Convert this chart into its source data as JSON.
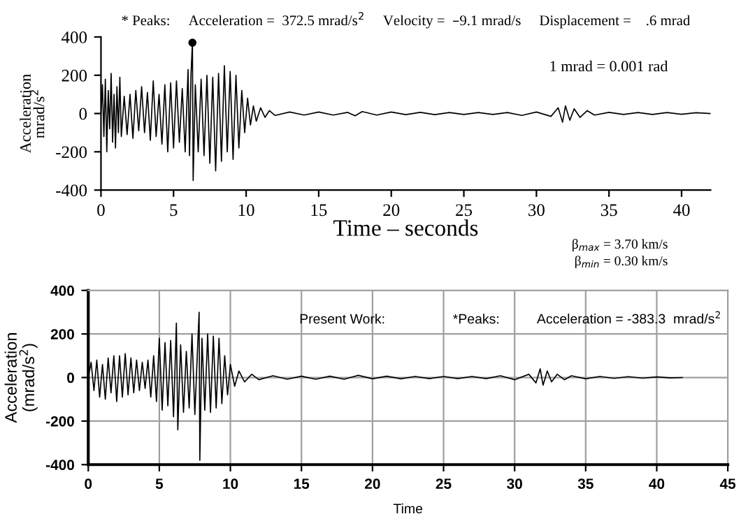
{
  "chart_data": [
    {
      "type": "line",
      "title": "* Peaks:     Acceleration =  372.5 mrad/s$^{2}$     Velocity =  –9.1 mrad/s     Displacement =    .6 mrad",
      "xlabel": "Time – seconds",
      "ylabel": "Acceleration\nmrad/s$^{2}$",
      "xlim": [
        0,
        42
      ],
      "ylim": [
        -400,
        400
      ],
      "xticks": [
        0,
        5,
        10,
        15,
        20,
        25,
        30,
        35,
        40
      ],
      "yticks": [
        -400,
        -200,
        0,
        200,
        400
      ],
      "grid": false,
      "legend": false,
      "annotations": [
        "1 mrad = 0.001 rad",
        "β$_{max}$ = 3.70 km/s",
        "β$_{min}$ = 0.30 km/s"
      ],
      "series": [
        {
          "color": "#000000",
          "x": [
            0,
            0.1,
            0.2,
            0.3,
            0.4,
            0.5,
            0.6,
            0.7,
            0.8,
            0.9,
            1.0,
            1.1,
            1.2,
            1.3,
            1.4,
            1.6,
            1.8,
            2.0,
            2.2,
            2.4,
            2.6,
            2.8,
            3.0,
            3.2,
            3.4,
            3.6,
            3.8,
            4.0,
            4.2,
            4.4,
            4.6,
            4.8,
            5.0,
            5.2,
            5.4,
            5.6,
            5.8,
            6.0,
            6.1,
            6.2,
            6.3,
            6.35,
            6.5,
            6.7,
            6.9,
            7.1,
            7.3,
            7.5,
            7.7,
            7.9,
            8.1,
            8.3,
            8.5,
            8.7,
            8.9,
            9.1,
            9.3,
            9.5,
            9.7,
            9.9,
            10.1,
            10.3,
            10.5,
            10.7,
            11,
            11.3,
            11.6,
            12,
            13,
            14,
            15,
            16,
            17,
            17.5,
            18,
            19,
            20,
            21,
            22,
            23,
            24,
            25,
            26,
            27,
            28,
            29,
            30,
            31,
            31.5,
            31.8,
            32,
            32.3,
            32.6,
            33,
            33.5,
            34,
            35,
            36,
            37,
            38,
            39,
            40,
            41,
            42
          ],
          "values": [
            0,
            150,
            -120,
            180,
            -200,
            120,
            -80,
            210,
            -150,
            100,
            -180,
            140,
            -100,
            190,
            -120,
            90,
            -110,
            100,
            -130,
            120,
            -90,
            140,
            -100,
            110,
            -140,
            170,
            -120,
            100,
            -160,
            150,
            -200,
            160,
            -180,
            170,
            -150,
            130,
            -200,
            230,
            -220,
            200,
            370,
            -350,
            150,
            -200,
            180,
            -220,
            200,
            -260,
            190,
            -300,
            210,
            -250,
            250,
            -200,
            220,
            -240,
            200,
            -180,
            120,
            -100,
            80,
            -60,
            40,
            -40,
            30,
            -20,
            15,
            -10,
            8,
            -8,
            8,
            -8,
            6,
            -12,
            10,
            -8,
            8,
            -6,
            6,
            -6,
            5,
            -5,
            5,
            -5,
            5,
            -10,
            8,
            -15,
            30,
            -45,
            40,
            -35,
            25,
            -20,
            15,
            -8,
            6,
            -5,
            5,
            -5,
            5,
            -4,
            4,
            0
          ]
        },
        {
          "type": "scatter",
          "color": "#000000",
          "marker": "circle",
          "x": [
            6.3
          ],
          "values": [
            370
          ]
        }
      ]
    },
    {
      "type": "line",
      "xlabel": "Time",
      "ylabel": "Acceleration\n(mrad/s$^{2}$)",
      "xlim": [
        0,
        45
      ],
      "ylim": [
        -400,
        400
      ],
      "xticks": [
        0,
        5,
        10,
        15,
        20,
        25,
        30,
        35,
        40,
        45
      ],
      "yticks": [
        -400,
        -200,
        0,
        200,
        400
      ],
      "grid": true,
      "legend": false,
      "annotations": [
        "Present Work:",
        "*Peaks:",
        "Acceleration = -383.3  mrad/s$^{2}$"
      ],
      "series": [
        {
          "color": "#000000",
          "x": [
            0,
            0.2,
            0.4,
            0.6,
            0.8,
            1.0,
            1.2,
            1.4,
            1.6,
            1.8,
            2.0,
            2.2,
            2.4,
            2.6,
            2.8,
            3.0,
            3.2,
            3.4,
            3.6,
            3.8,
            4.0,
            4.2,
            4.4,
            4.6,
            4.8,
            5.0,
            5.2,
            5.4,
            5.6,
            5.8,
            6.0,
            6.2,
            6.3,
            6.5,
            6.7,
            6.9,
            7.1,
            7.3,
            7.5,
            7.7,
            7.8,
            7.85,
            8.0,
            8.2,
            8.4,
            8.6,
            8.8,
            9.0,
            9.2,
            9.4,
            9.6,
            9.8,
            10.0,
            10.3,
            10.6,
            11,
            11.5,
            12,
            13,
            14,
            15,
            16,
            17,
            18,
            19,
            20,
            21,
            22,
            23,
            24,
            25,
            26,
            27,
            28,
            29,
            30,
            31,
            31.5,
            31.8,
            32,
            32.3,
            32.6,
            33,
            33.5,
            34,
            35,
            36,
            37,
            38,
            39,
            40,
            41,
            41.8
          ],
          "values": [
            0,
            70,
            -60,
            80,
            -90,
            60,
            -100,
            90,
            -70,
            100,
            -110,
            100,
            -90,
            110,
            -80,
            90,
            -70,
            80,
            -60,
            70,
            -50,
            80,
            -90,
            100,
            -110,
            180,
            -150,
            160,
            -130,
            170,
            -180,
            250,
            -240,
            150,
            -160,
            120,
            -140,
            200,
            -170,
            150,
            300,
            -380,
            180,
            -150,
            200,
            -160,
            190,
            -140,
            180,
            -120,
            100,
            -80,
            60,
            -40,
            30,
            -20,
            15,
            -10,
            8,
            -8,
            6,
            -8,
            6,
            -8,
            10,
            -6,
            6,
            -6,
            5,
            -5,
            5,
            -5,
            5,
            -5,
            8,
            -10,
            15,
            -25,
            40,
            -35,
            30,
            -20,
            15,
            -10,
            8,
            -6,
            5,
            -4,
            4,
            -3,
            3,
            -2,
            0
          ]
        }
      ]
    }
  ]
}
